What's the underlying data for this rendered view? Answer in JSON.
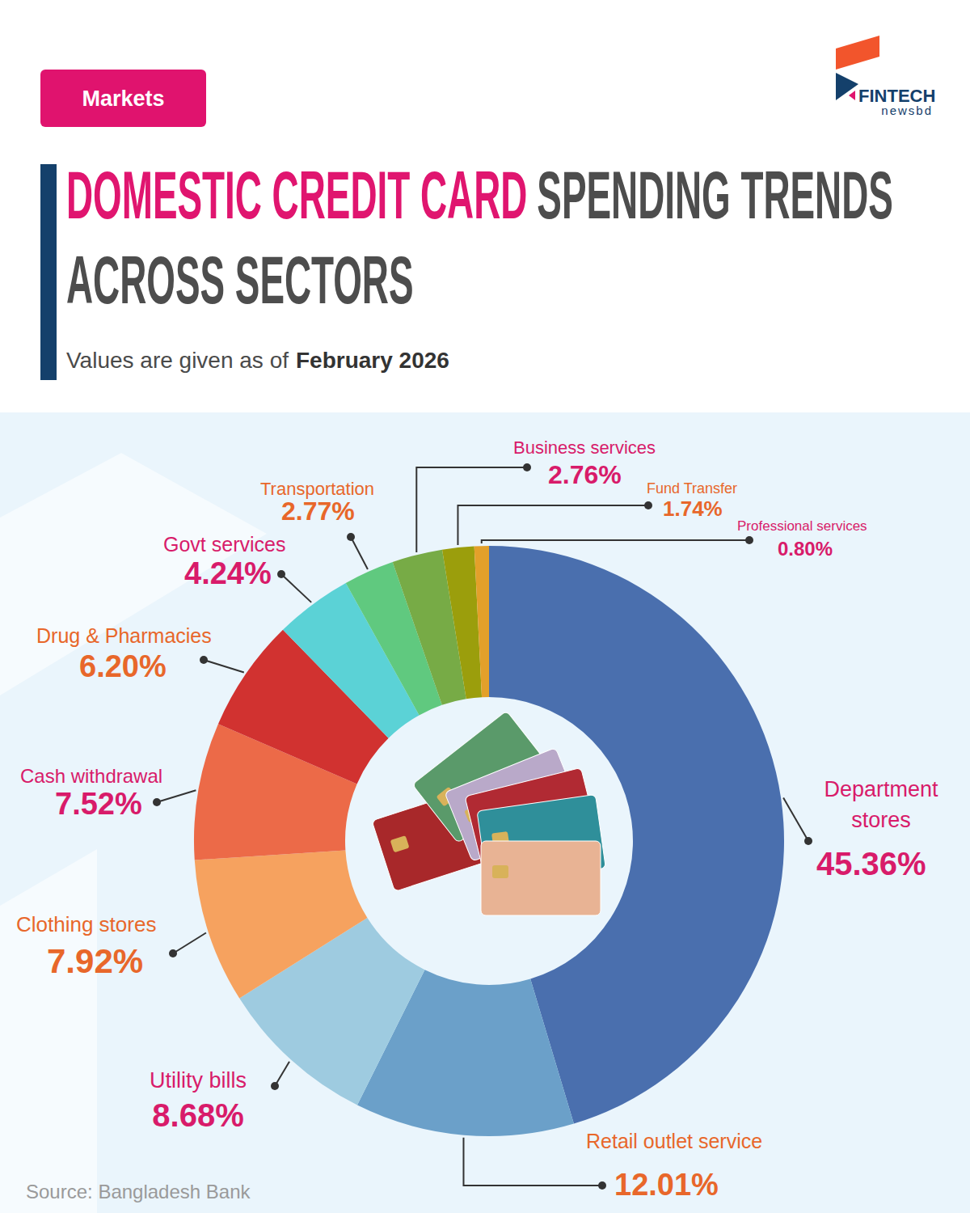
{
  "header": {
    "tag": "Markets",
    "title_line1_highlight": "DOMESTIC CREDIT CARD",
    "title_line1": "SPENDING TRENDS",
    "title_line2": "ACROSS SECTORS",
    "subtitle": "Values are given as of",
    "subtitle_bold": "February 2026"
  },
  "logo": {
    "name": "FINTECH",
    "tagline": "newsbd"
  },
  "chart_data": {
    "type": "donut",
    "categories": [
      "Department stores",
      "Retail outlet service",
      "Utility bills",
      "Clothing stores",
      "Cash withdrawal",
      "Drug & Pharmacies",
      "Govt services",
      "Transportation",
      "Business services",
      "Fund Transfer",
      "Professional services"
    ],
    "values": [
      45.36,
      12.01,
      8.68,
      7.92,
      7.52,
      6.2,
      4.24,
      2.77,
      2.76,
      1.74,
      0.8
    ],
    "value_labels": [
      "45.36%",
      "12.01%",
      "8.68%",
      "7.92%",
      "7.52%",
      "6.20%",
      "4.24%",
      "2.77%",
      "2.76%",
      "1.74%",
      "0.80%"
    ],
    "colors": [
      "#4a6fae",
      "#6ba0c9",
      "#9ecbe0",
      "#f6a25f",
      "#ec6a48",
      "#d13230",
      "#5bd2d6",
      "#60c97f",
      "#77ab46",
      "#9b9e0c",
      "#e3a02a"
    ],
    "data_labels": true
  },
  "source": "Source: Bangladesh Bank"
}
